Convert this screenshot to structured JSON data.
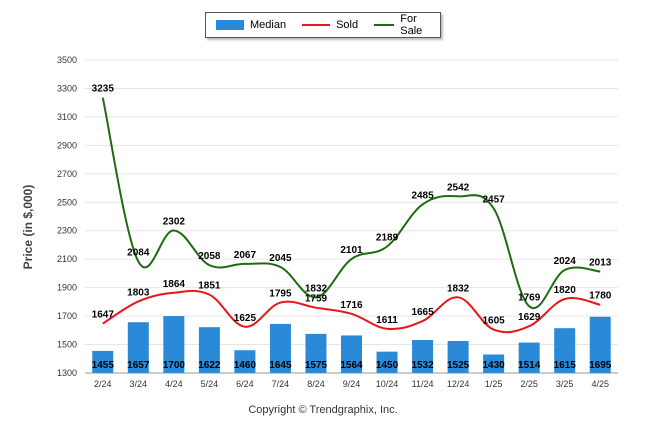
{
  "legend": {
    "median": "Median",
    "sold": "Sold",
    "for_sale": "For Sale"
  },
  "colors": {
    "median": "#2b8ad8",
    "sold": "#e8161c",
    "for_sale": "#1e6b12",
    "grid": "#e6e6e6"
  },
  "footer": "Copyright © Trendgraphix, Inc.",
  "chart_data": {
    "type": "bar",
    "ylabel": "Price (in $,000)",
    "xlabel": "",
    "title": "",
    "ylim": [
      1300,
      3500
    ],
    "yticks": [
      1300,
      1500,
      1700,
      1900,
      2100,
      2300,
      2500,
      2700,
      2900,
      3100,
      3300,
      3500
    ],
    "grid": true,
    "legend_position": "top-center",
    "categories": [
      "2/24",
      "3/24",
      "4/24",
      "5/24",
      "6/24",
      "7/24",
      "8/24",
      "9/24",
      "10/24",
      "11/24",
      "12/24",
      "1/25",
      "2/25",
      "3/25",
      "4/25"
    ],
    "series": [
      {
        "name": "Median",
        "type": "bar",
        "values": [
          1455,
          1657,
          1700,
          1622,
          1460,
          1645,
          1575,
          1564,
          1450,
          1532,
          1525,
          1430,
          1514,
          1615,
          1695
        ]
      },
      {
        "name": "Sold",
        "type": "line",
        "values": [
          1647,
          1803,
          1864,
          1851,
          1625,
          1795,
          1759,
          1716,
          1611,
          1665,
          1832,
          1605,
          1629,
          1820,
          1780
        ]
      },
      {
        "name": "For Sale",
        "type": "line",
        "values": [
          3235,
          2084,
          2302,
          2058,
          2067,
          2045,
          1832,
          2101,
          2189,
          2485,
          2542,
          2457,
          1769,
          2024,
          2013
        ]
      }
    ]
  }
}
